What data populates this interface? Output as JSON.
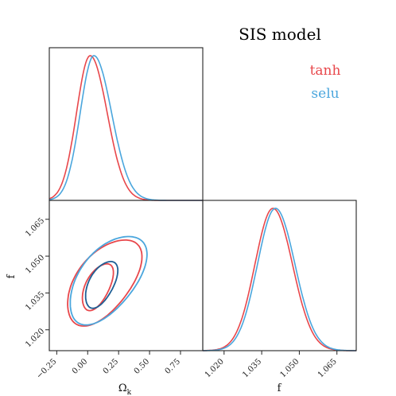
{
  "title": "SIS model",
  "colors": {
    "tanh": "#e8474b",
    "selu": "#4aa6dd",
    "selu_inner": "#1f5f95",
    "frame": "#222222"
  },
  "legend": [
    {
      "label": "tanh",
      "color": "#e8474b"
    },
    {
      "label": "selu",
      "color": "#4aa6dd"
    }
  ],
  "axes": {
    "omega_label_base": "Ω",
    "omega_label_sub": "k",
    "f_label": "f"
  },
  "chart_data": [
    {
      "type": "line",
      "panel": "marginal-omega_k",
      "x_range": [
        -0.31,
        0.93
      ],
      "series": [
        {
          "name": "tanh",
          "mu": 0.02,
          "sigma": 0.11,
          "skew_right": 1.25
        },
        {
          "name": "selu",
          "mu": 0.05,
          "sigma": 0.11,
          "skew_right": 1.3
        }
      ]
    },
    {
      "type": "contour",
      "panel": "joint-omega_k-f",
      "x_range": [
        -0.31,
        0.93
      ],
      "y_range": [
        1.0115,
        1.0727
      ],
      "x_ticks": [
        -0.25,
        0.0,
        0.25,
        0.5,
        0.75
      ],
      "x_tick_labels": [
        "−0.25",
        "0.00",
        "0.25",
        "0.50",
        "0.75"
      ],
      "y_ticks": [
        1.02,
        1.035,
        1.05,
        1.065
      ],
      "y_tick_labels": [
        "1.020",
        "1.035",
        "1.050",
        "1.065"
      ],
      "series": [
        {
          "name": "tanh",
          "level": "68%",
          "cx": 0.08,
          "cy": 1.0375,
          "rx": 0.125,
          "ry": 0.0095,
          "tilt": 0.55
        },
        {
          "name": "tanh",
          "level": "95%",
          "cx": 0.13,
          "cy": 1.0395,
          "rx": 0.3,
          "ry": 0.0175,
          "tilt": 0.55
        },
        {
          "name": "selu",
          "level": "68%",
          "cx": 0.11,
          "cy": 1.0385,
          "rx": 0.13,
          "ry": 0.0095,
          "tilt": 0.55
        },
        {
          "name": "selu",
          "level": "95%",
          "cx": 0.16,
          "cy": 1.0405,
          "rx": 0.31,
          "ry": 0.018,
          "tilt": 0.55
        }
      ]
    },
    {
      "type": "line",
      "panel": "marginal-f",
      "x_range": [
        1.0115,
        1.0727
      ],
      "x_ticks": [
        1.02,
        1.035,
        1.05,
        1.065
      ],
      "x_tick_labels": [
        "1.020",
        "1.035",
        "1.050",
        "1.065"
      ],
      "series": [
        {
          "name": "tanh",
          "mu": 1.0395,
          "sigma": 0.0072,
          "skew_right": 1.08
        },
        {
          "name": "selu",
          "mu": 1.0405,
          "sigma": 0.0072,
          "skew_right": 1.08
        }
      ]
    }
  ]
}
